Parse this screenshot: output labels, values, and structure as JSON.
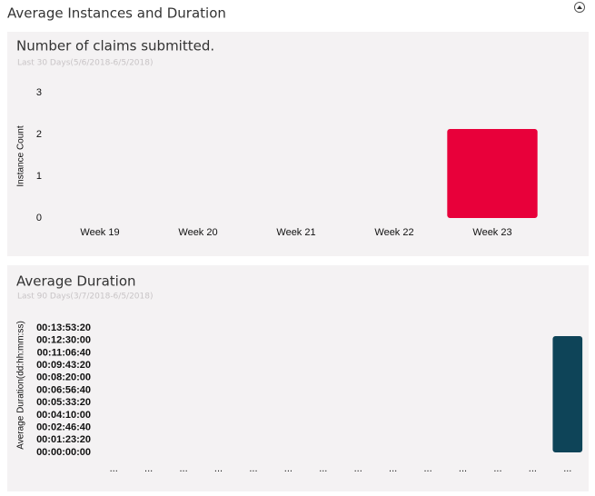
{
  "header": {
    "title": "Average Instances and Duration"
  },
  "chart_data": [
    {
      "type": "bar",
      "title": "Number of claims submitted.",
      "subtitle": "Last 30 Days(5/6/2018-6/5/2018)",
      "y_label": "Instance Count",
      "categories": [
        "Week 19",
        "Week 20",
        "Week 21",
        "Week 22",
        "Week 23"
      ],
      "values": [
        0,
        0,
        0,
        0,
        2
      ],
      "colors": [
        "#0a6fc2",
        "#0e4458",
        "#2e7d55",
        "#6f7155",
        "#e8003a"
      ],
      "ylim": [
        0,
        3.2
      ],
      "yticks": [
        0,
        1,
        2,
        3
      ],
      "grid": false
    },
    {
      "type": "bar",
      "title": "Average Duration",
      "subtitle": "Last 90 Days(3/7/2018-6/5/2018)",
      "y_label": "Average Duration(dd:hh:mm:ss)",
      "categories": [
        "...",
        "...",
        "...",
        "...",
        "...",
        "...",
        "...",
        "...",
        "...",
        "...",
        "...",
        "...",
        "...",
        "..."
      ],
      "values": [
        0,
        0,
        0,
        0,
        0,
        0,
        0,
        0,
        0,
        0,
        0,
        0,
        0,
        44500
      ],
      "colors": [
        "#0a6fc2",
        "#0e4458",
        "#2e7d55",
        "#6f7155",
        "#e8003a",
        "#5b2a6e",
        "#8cc6ef",
        "#4a90a4",
        "#5dbb8a",
        "#a7a98a",
        "#ef4a68",
        "#9b59b6",
        "#0a6fc2",
        "#0e4458"
      ],
      "ylim": [
        0,
        52000
      ],
      "yticks": [
        {
          "value": 0,
          "label": "00:00:00:00"
        },
        {
          "value": 5000,
          "label": "00:01:23:20"
        },
        {
          "value": 10000,
          "label": "00:02:46:40"
        },
        {
          "value": 15000,
          "label": "00:04:10:00"
        },
        {
          "value": 20000,
          "label": "00:05:33:20"
        },
        {
          "value": 25000,
          "label": "00:06:56:40"
        },
        {
          "value": 30000,
          "label": "00:08:20:00"
        },
        {
          "value": 35000,
          "label": "00:09:43:20"
        },
        {
          "value": 40000,
          "label": "00:11:06:40"
        },
        {
          "value": 45000,
          "label": "00:12:30:00"
        },
        {
          "value": 50000,
          "label": "00:13:53:20"
        }
      ],
      "grid": false
    }
  ]
}
